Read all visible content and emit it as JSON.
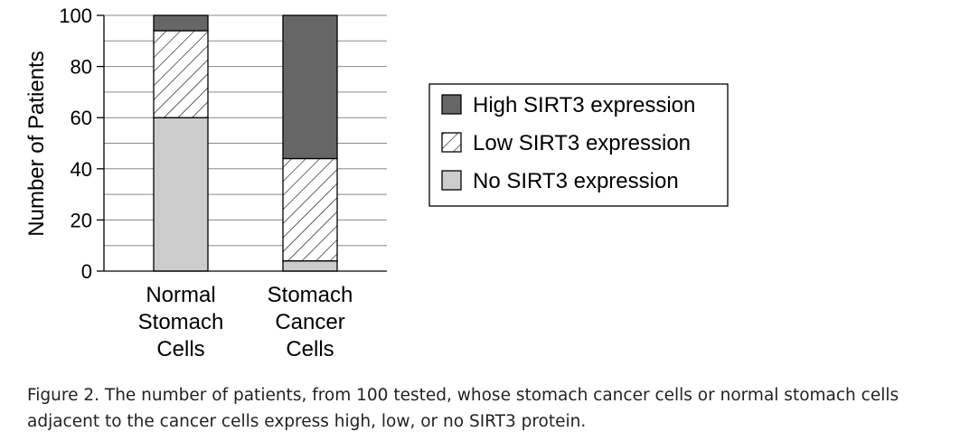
{
  "chart_data": {
    "type": "bar",
    "stacked": true,
    "categories": [
      [
        "Normal",
        "Stomach",
        "Cells"
      ],
      [
        "Stomach",
        "Cancer",
        "Cells"
      ]
    ],
    "series": [
      {
        "name": "No SIRT3 expression",
        "values": [
          60,
          4
        ],
        "color": "#cccccc",
        "pattern": "solid"
      },
      {
        "name": "Low SIRT3 expression",
        "values": [
          34,
          40
        ],
        "color": "#ffffff",
        "pattern": "hatch"
      },
      {
        "name": "High SIRT3 expression",
        "values": [
          6,
          56
        ],
        "color": "#666666",
        "pattern": "solid"
      }
    ],
    "legend_order": [
      "High SIRT3 expression",
      "Low SIRT3 expression",
      "No SIRT3 expression"
    ],
    "title": "",
    "xlabel": "",
    "ylabel": "Number of Patients",
    "ylim": [
      0,
      100
    ],
    "yticks": [
      0,
      20,
      40,
      60,
      80,
      100
    ],
    "grid": true,
    "legend_placement": "right"
  },
  "caption": "Figure 2. The number of patients, from 100 tested, whose stomach cancer cells or normal stomach cells adjacent to the cancer cells express high, low, or no SIRT3 protein."
}
